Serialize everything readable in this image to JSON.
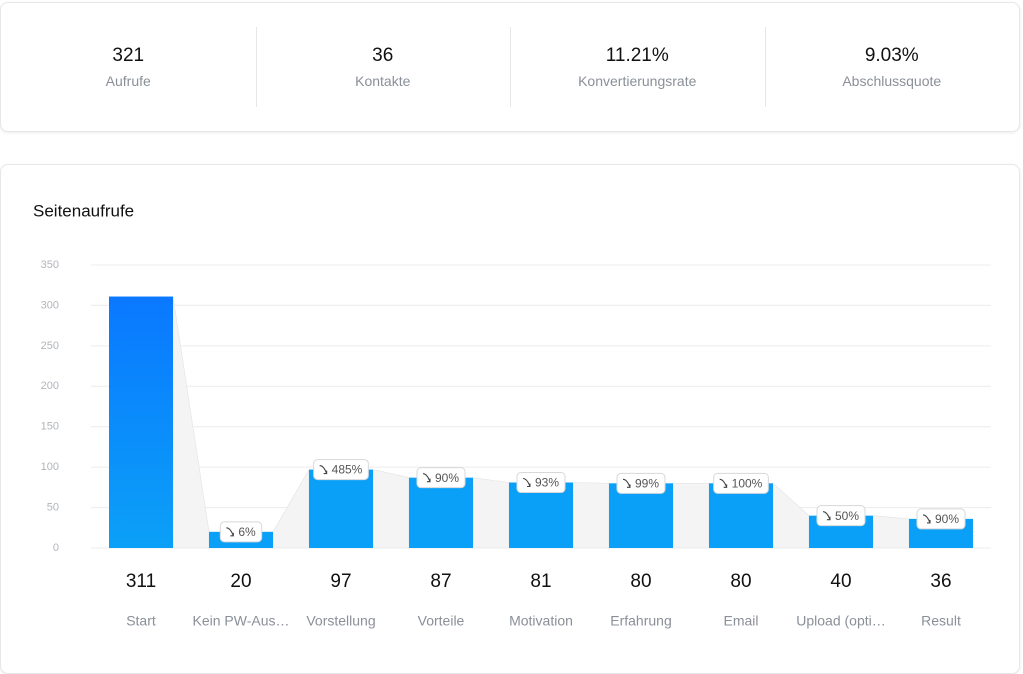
{
  "stats": [
    {
      "value": "321",
      "label": "Aufrufe"
    },
    {
      "value": "36",
      "label": "Kontakte"
    },
    {
      "value": "11.21%",
      "label": "Konvertierungsrate"
    },
    {
      "value": "9.03%",
      "label": "Abschlussquote"
    }
  ],
  "chart_data": {
    "type": "bar",
    "title": "Seitenaufrufe",
    "categories": [
      "Start",
      "Kein PW-Aus…",
      "Vorstellung",
      "Vorteile",
      "Motivation",
      "Erfahrung",
      "Email",
      "Upload (opti…",
      "Result"
    ],
    "values": [
      311,
      20,
      97,
      87,
      81,
      80,
      80,
      40,
      36
    ],
    "step_rates": [
      null,
      "6%",
      "485%",
      "90%",
      "93%",
      "99%",
      "100%",
      "50%",
      "90%"
    ],
    "color": "#0ba0f7",
    "first_color": "#0a78ff",
    "ylim": [
      0,
      350
    ],
    "yticks": [
      0,
      50,
      100,
      150,
      200,
      250,
      300,
      350
    ],
    "grid": true
  }
}
